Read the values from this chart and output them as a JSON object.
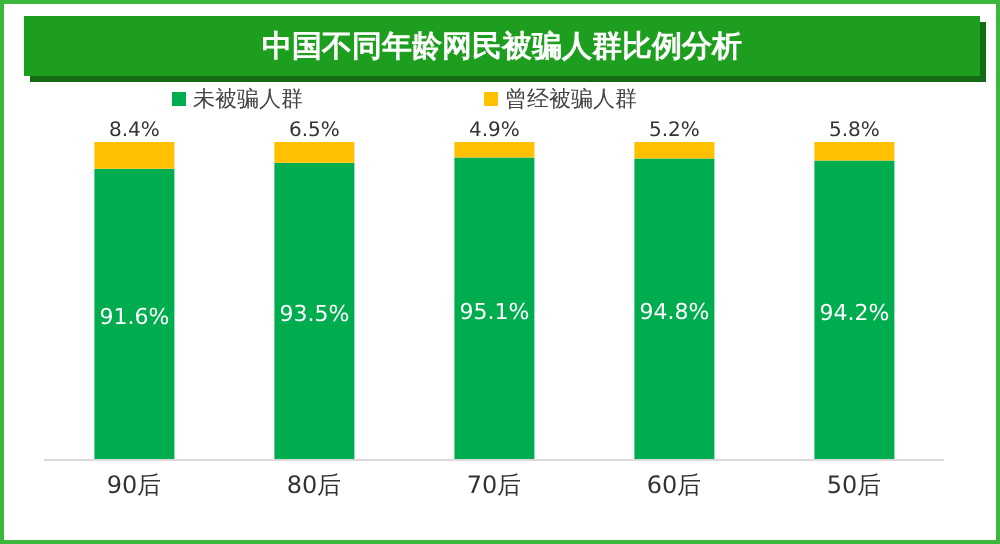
{
  "chart_data": {
    "type": "bar",
    "title": "中国不同年龄网民被骗人群比例分析",
    "categories": [
      "90后",
      "80后",
      "70后",
      "60后",
      "50后"
    ],
    "stacked": true,
    "legend": "top",
    "series": [
      {
        "name": "未被骗人群",
        "color": "#00ad4e",
        "values": [
          91.6,
          93.5,
          95.1,
          94.8,
          94.2
        ],
        "value_labels": [
          "91.6%",
          "93.5%",
          "95.1%",
          "94.8%",
          "94.2%"
        ]
      },
      {
        "name": "曾经被骗人群",
        "color": "#ffc000",
        "values": [
          8.4,
          6.5,
          4.9,
          5.2,
          5.8
        ],
        "value_labels": [
          "8.4%",
          "6.5%",
          "4.9%",
          "5.2%",
          "5.8%"
        ]
      }
    ]
  }
}
